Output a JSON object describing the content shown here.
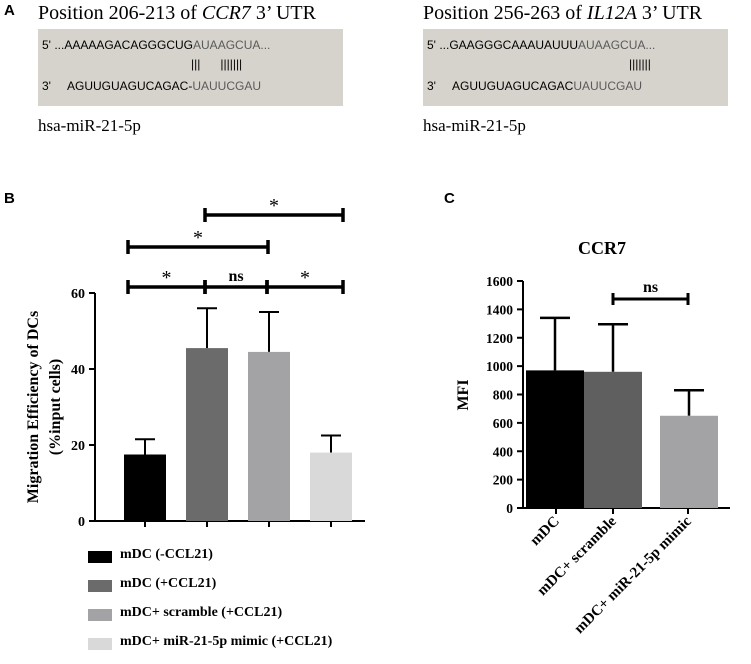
{
  "panelA": {
    "letter": "A",
    "left": {
      "title_prefix": "Position 206-213 of ",
      "gene": "CCR7",
      "title_suffix": " 3’ UTR",
      "line1_prime": "5'",
      "line1_dark": "...AAAAAGACAGGGCUG",
      "line1_light": "AUAAGCUA...",
      "pairs": "|||      |||||||",
      "line2_prime": "3'",
      "line2_dark": "AGUUGUAGUCAGAC-",
      "line2_light": "UAUUCGAU",
      "mirna": "hsa-miR-21-5p"
    },
    "right": {
      "title_prefix": "Position 256-263 of ",
      "gene": "IL12A",
      "title_suffix": " 3’ UTR",
      "line1_prime": "5'",
      "line1_dark": "...GAAGGGCAAAUAUUU",
      "line1_light": "AUAAGCUA...",
      "pairs": "|||||||",
      "line2_prime": "3'",
      "line2_dark": "AGUUGUAGUCAGAC",
      "line2_light": "UAUUCGAU",
      "mirna": "hsa-miR-21-5p"
    }
  },
  "panelB": {
    "letter": "B",
    "legend": [
      {
        "label": "mDC  (-CCL21)",
        "color": "#000000"
      },
      {
        "label": "mDC  (+CCL21)",
        "color": "#6b6b6b"
      },
      {
        "label": "mDC+ scramble (+CCL21)",
        "color": "#a3a3a6"
      },
      {
        "label": "mDC+ miR-21-5p mimic (+CCL21)",
        "color": "#d9d9d9"
      }
    ]
  },
  "panelC": {
    "letter": "C"
  },
  "chart_data": [
    {
      "type": "bar",
      "panel": "B",
      "title": "",
      "ylabel_line1": "Migration Efficiency of DCs",
      "ylabel_line2": "(%input cells)",
      "xlabel": "",
      "ylim": [
        0,
        60
      ],
      "yticks": [
        0,
        20,
        40,
        60
      ],
      "categories": [
        "mDC  (-CCL21)",
        "mDC  (+CCL21)",
        "mDC+ scramble (+CCL21)",
        "mDC+ miR-21-5p mimic (+CCL21)"
      ],
      "values": [
        17.5,
        45.5,
        44.5,
        18
      ],
      "errors": [
        4,
        10.5,
        10.5,
        4.5
      ],
      "colors": [
        "#000000",
        "#6b6b6b",
        "#a3a3a6",
        "#d9d9d9"
      ],
      "significance": [
        {
          "from": 0,
          "to": 1,
          "label": "*"
        },
        {
          "from": 1,
          "to": 2,
          "label": "ns"
        },
        {
          "from": 2,
          "to": 3,
          "label": "*"
        },
        {
          "from": 0,
          "to": 2,
          "label": "*"
        },
        {
          "from": 1,
          "to": 3,
          "label": "*"
        }
      ]
    },
    {
      "type": "bar",
      "panel": "C",
      "title": "CCR7",
      "ylabel": "MFI",
      "xlabel": "",
      "ylim": [
        0,
        1600
      ],
      "yticks": [
        0,
        200,
        400,
        600,
        800,
        1000,
        1200,
        1400,
        1600
      ],
      "categories": [
        "mDC",
        "mDC+ scramble",
        "mDC+ miR-21-5p  mimic"
      ],
      "values": [
        970,
        960,
        650
      ],
      "errors": [
        370,
        335,
        180
      ],
      "colors": [
        "#000000",
        "#5f5f5f",
        "#a3a3a6"
      ],
      "significance": [
        {
          "from": 1,
          "to": 2,
          "label": "ns"
        }
      ]
    }
  ]
}
